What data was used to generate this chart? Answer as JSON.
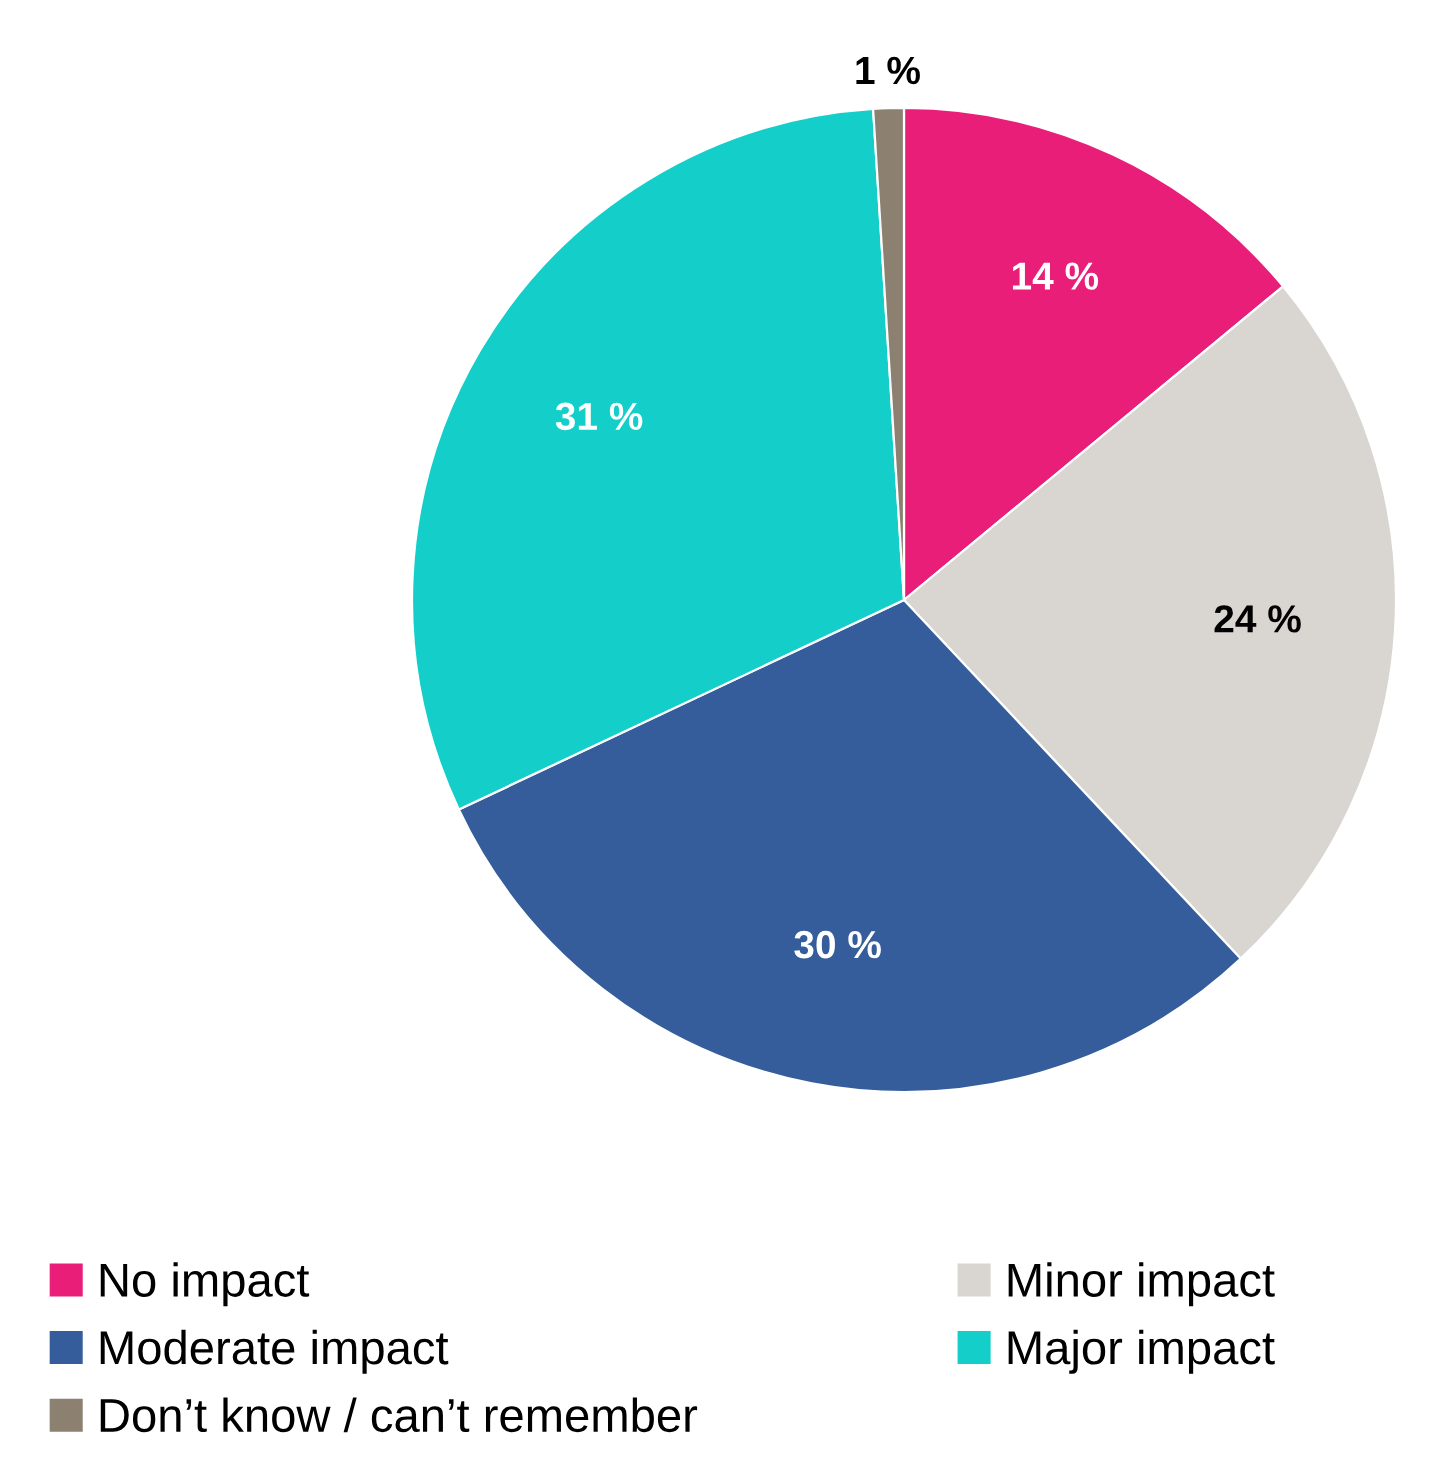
{
  "chart_data": {
    "type": "pie",
    "categories": [
      "No impact",
      "Minor impact",
      "Moderate impact",
      "Major impact",
      "Don’t know / can’t remember"
    ],
    "values": [
      14,
      24,
      30,
      31,
      1
    ],
    "colors": [
      "#e91e78",
      "#d9d5d0",
      "#355d9c",
      "#14cfc9",
      "#8c8070"
    ],
    "value_labels": [
      "14 %",
      "24 %",
      "30 %",
      "31 %",
      "1 %"
    ],
    "legend": "bottom"
  }
}
